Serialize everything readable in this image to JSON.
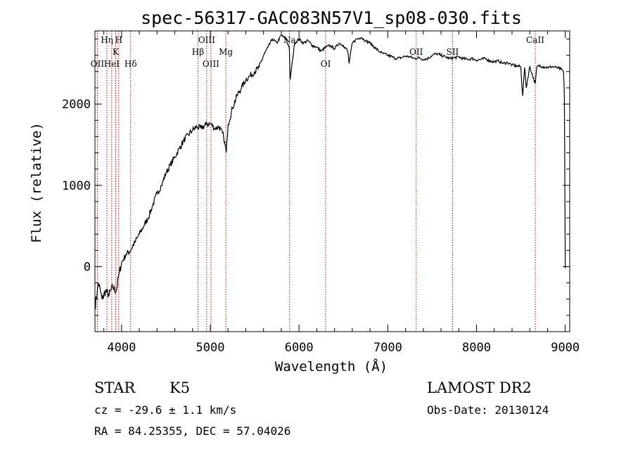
{
  "chart_data": {
    "type": "line",
    "title": "spec-56317-GAC083N57V1_sp08-030.fits",
    "xlabel": "Wavelength (Å)",
    "ylabel": "Flux (relative)",
    "xlim": [
      3700,
      9050
    ],
    "ylim": [
      -800,
      2900
    ],
    "x_ticks": [
      4000,
      5000,
      6000,
      7000,
      8000,
      9000
    ],
    "y_ticks": [
      0,
      1000,
      2000
    ],
    "grid": false,
    "series": [
      {
        "x": [
          3700,
          3740,
          3780,
          3820,
          3860,
          3900,
          3940,
          3970,
          4000,
          4050,
          4100,
          4150,
          4200,
          4250,
          4300,
          4350,
          4400,
          4450,
          4500,
          4550,
          4600,
          4650,
          4700,
          4750,
          4800,
          4850,
          4900,
          4950,
          5000,
          5050,
          5100,
          5150,
          5180,
          5200,
          5250,
          5300,
          5350,
          5400,
          5450,
          5500,
          5550,
          5600,
          5650,
          5700,
          5750,
          5800,
          5850,
          5890,
          5900,
          5950,
          6000,
          6050,
          6100,
          6150,
          6200,
          6250,
          6300,
          6350,
          6400,
          6450,
          6500,
          6550,
          6563,
          6600,
          6650,
          6700,
          6750,
          6800,
          6850,
          6900,
          6950,
          7000,
          7050,
          7100,
          7150,
          7200,
          7250,
          7300,
          7350,
          7400,
          7450,
          7500,
          7550,
          7600,
          7650,
          7700,
          7750,
          7800,
          7850,
          7900,
          7950,
          8000,
          8050,
          8100,
          8150,
          8200,
          8250,
          8300,
          8350,
          8400,
          8450,
          8498,
          8520,
          8542,
          8560,
          8600,
          8662,
          8680,
          8700,
          8750,
          8800,
          8850,
          8900,
          8950,
          8980,
          8990,
          9000
        ],
        "y": [
          -500,
          -200,
          -400,
          -300,
          -350,
          -250,
          -300,
          -100,
          50,
          150,
          200,
          300,
          400,
          500,
          600,
          750,
          900,
          1000,
          1150,
          1250,
          1350,
          1450,
          1550,
          1620,
          1680,
          1720,
          1700,
          1750,
          1760,
          1700,
          1720,
          1600,
          1400,
          1750,
          1950,
          2100,
          2200,
          2300,
          2350,
          2400,
          2450,
          2600,
          2700,
          2800,
          2750,
          2850,
          2800,
          2700,
          2300,
          2750,
          2800,
          2750,
          2780,
          2720,
          2700,
          2650,
          2700,
          2720,
          2680,
          2750,
          2720,
          2650,
          2500,
          2750,
          2800,
          2820,
          2780,
          2750,
          2700,
          2650,
          2620,
          2600,
          2580,
          2560,
          2570,
          2590,
          2580,
          2560,
          2570,
          2550,
          2560,
          2600,
          2620,
          2600,
          2580,
          2560,
          2570,
          2580,
          2560,
          2550,
          2560,
          2540,
          2550,
          2560,
          2530,
          2520,
          2530,
          2500,
          2510,
          2480,
          2470,
          2460,
          2100,
          2450,
          2200,
          2460,
          2250,
          2460,
          2470,
          2460,
          2450,
          2460,
          2450,
          2430,
          2400,
          2100,
          -20
        ]
      }
    ],
    "spectral_lines": [
      {
        "label": "OII",
        "x": 3727,
        "row": 3
      },
      {
        "label": "Hη",
        "x": 3835,
        "row": 1
      },
      {
        "label": "HeI",
        "x": 3889,
        "row": 3
      },
      {
        "label": "K",
        "x": 3934,
        "row": 2
      },
      {
        "label": "H",
        "x": 3968,
        "row": 1
      },
      {
        "label": "Hδ",
        "x": 4102,
        "row": 3
      },
      {
        "label": "Hβ",
        "x": 4861,
        "row": 2
      },
      {
        "label": "OIII",
        "x": 4959,
        "row": 1
      },
      {
        "label": "OIII",
        "x": 5007,
        "row": 3
      },
      {
        "label": "Mg",
        "x": 5175,
        "row": 2
      },
      {
        "label": "Na",
        "x": 5893,
        "row": 1
      },
      {
        "label": "OI",
        "x": 6300,
        "row": 3
      },
      {
        "label": "OII",
        "x": 7320,
        "row": 2
      },
      {
        "label": "SII",
        "x": 7730,
        "row": 2
      },
      {
        "label": "CaII",
        "x": 8662,
        "row": 1
      }
    ]
  },
  "info": {
    "object": "STAR",
    "subclass": "K5",
    "cz": "cz = -29.6 ± 1.1 km/s",
    "coords": "RA =  84.25355, DEC =  57.04026",
    "survey": "LAMOST DR2",
    "obs_date": "Obs-Date: 20130124"
  },
  "colors": {
    "spectrum": "#000000",
    "line_markers": "#c00000"
  }
}
